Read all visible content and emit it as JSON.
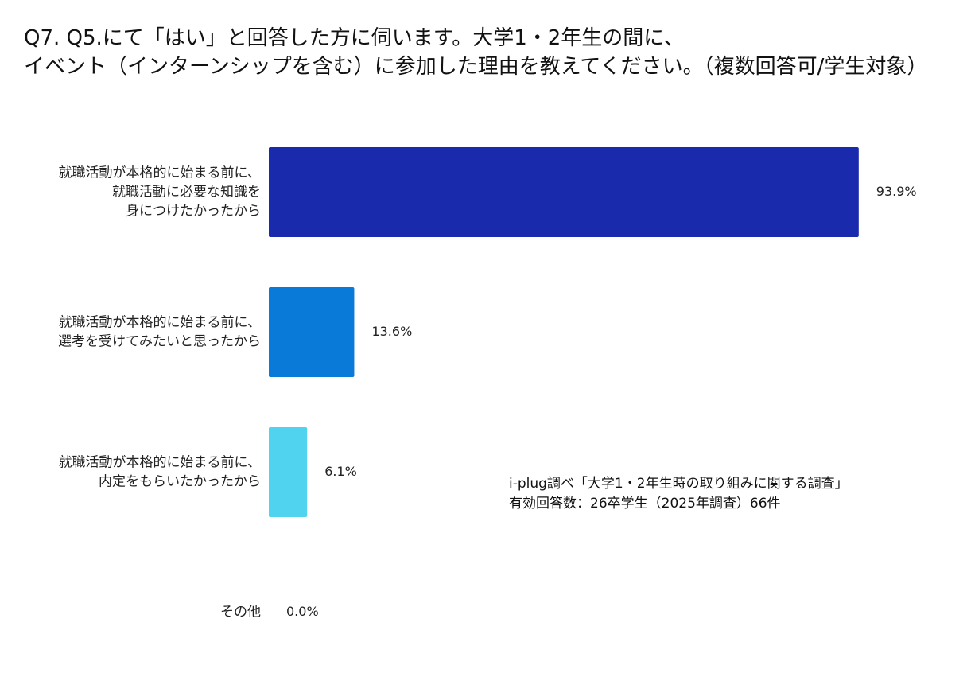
{
  "title": {
    "line1": "Q7. Q5.にて「はい」と回答した方に伺います。大学1・2年生の間に、",
    "line2": "イベント（インターンシップを含む）に参加した理由を教えてください。（複数回答可/学生対象）"
  },
  "chart_data": {
    "type": "bar",
    "orientation": "horizontal",
    "unit": "%",
    "xlim": [
      0,
      100
    ],
    "grid": false,
    "categories": [
      [
        "就職活動が本格的に始まる前に、",
        "就職活動に必要な知識を",
        "身につけたかったから"
      ],
      [
        "就職活動が本格的に始まる前に、",
        "選考を受けてみたいと思ったから"
      ],
      [
        "就職活動が本格的に始まる前に、",
        "内定をもらいたかったから"
      ],
      [
        "その他"
      ]
    ],
    "values": [
      93.9,
      13.6,
      6.1,
      0.0
    ],
    "value_labels": [
      "93.9%",
      "13.6%",
      "6.1%",
      "0.0%"
    ],
    "colors": [
      "#1a2aad",
      "#0a7ad8",
      "#4fd3ee",
      "#4fd3ee"
    ]
  },
  "note": {
    "line1": "i-plug調べ「大学1・2年生時の取り組みに関する調査」",
    "line2": "有効回答数：26卒学生（2025年調査）66件"
  }
}
